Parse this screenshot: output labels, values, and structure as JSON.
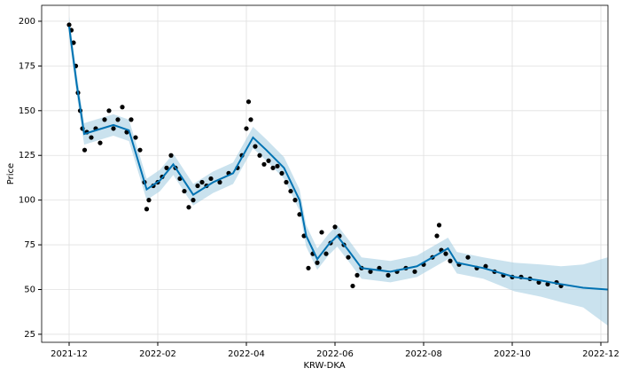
{
  "chart_data": {
    "type": "forecast",
    "xlabel": "KRW-DKA",
    "ylabel": "Price",
    "grid": true,
    "xlim": [
      -0.62,
      12.16
    ],
    "ylim": [
      20.5,
      208.9
    ],
    "xticks": [
      {
        "value": 0,
        "label": "2021-12"
      },
      {
        "value": 2,
        "label": "2022-02"
      },
      {
        "value": 4,
        "label": "2022-04"
      },
      {
        "value": 6,
        "label": "2022-06"
      },
      {
        "value": 8,
        "label": "2022-08"
      },
      {
        "value": 10,
        "label": "2022-10"
      },
      {
        "value": 12,
        "label": "2022-12"
      }
    ],
    "yticks": [
      25,
      50,
      75,
      100,
      125,
      150,
      175,
      200
    ],
    "observed": {
      "color": "#000000",
      "x": [
        0.0,
        0.05,
        0.1,
        0.15,
        0.2,
        0.25,
        0.3,
        0.35,
        0.4,
        0.5,
        0.6,
        0.7,
        0.8,
        0.9,
        1.0,
        1.1,
        1.2,
        1.3,
        1.4,
        1.5,
        1.6,
        1.7,
        1.75,
        1.8,
        1.9,
        2.0,
        2.1,
        2.2,
        2.3,
        2.4,
        2.5,
        2.6,
        2.7,
        2.8,
        2.9,
        3.0,
        3.1,
        3.2,
        3.4,
        3.6,
        3.8,
        3.9,
        4.0,
        4.05,
        4.1,
        4.2,
        4.3,
        4.4,
        4.5,
        4.6,
        4.7,
        4.8,
        4.9,
        5.0,
        5.1,
        5.2,
        5.3,
        5.4,
        5.5,
        5.6,
        5.7,
        5.8,
        5.9,
        6.0,
        6.1,
        6.2,
        6.3,
        6.4,
        6.5,
        6.6,
        6.8,
        7.0,
        7.2,
        7.4,
        7.6,
        7.8,
        8.0,
        8.2,
        8.3,
        8.35,
        8.4,
        8.5,
        8.6,
        8.8,
        9.0,
        9.2,
        9.4,
        9.6,
        9.8,
        10.0,
        10.2,
        10.4,
        10.6,
        10.8,
        11.0,
        11.1
      ],
      "values": [
        198,
        195,
        188,
        175,
        160,
        150,
        140,
        128,
        138,
        135,
        140,
        132,
        145,
        150,
        140,
        145,
        152,
        138,
        145,
        135,
        128,
        110,
        95,
        100,
        108,
        110,
        113,
        118,
        125,
        118,
        112,
        105,
        96,
        100,
        108,
        110,
        108,
        112,
        110,
        115,
        118,
        125,
        140,
        155,
        145,
        130,
        125,
        120,
        122,
        118,
        119,
        115,
        110,
        105,
        100,
        92,
        80,
        62,
        70,
        65,
        82,
        70,
        76,
        85,
        80,
        75,
        68,
        52,
        58,
        62,
        60,
        62,
        58,
        60,
        62,
        60,
        64,
        68,
        80,
        86,
        72,
        70,
        66,
        64,
        68,
        62,
        63,
        60,
        58,
        57,
        57,
        56,
        54,
        53,
        54,
        52
      ]
    },
    "forecast": {
      "color": "#0072b2",
      "band_color": "#a6cee3",
      "x": [
        0,
        0.17,
        0.34,
        0.6,
        1.0,
        1.35,
        1.75,
        2.05,
        2.35,
        2.8,
        3.25,
        3.7,
        4.15,
        4.45,
        4.85,
        5.2,
        5.35,
        5.6,
        5.85,
        6.05,
        6.3,
        6.6,
        7.25,
        7.85,
        8.55,
        8.75,
        9.35,
        10.05,
        10.65,
        11.1,
        11.6,
        12.15
      ],
      "values": [
        197,
        165,
        137,
        139,
        142,
        139,
        106,
        111,
        120,
        103,
        110,
        115,
        135,
        128,
        118,
        100,
        80,
        67,
        75,
        80,
        72,
        62,
        60,
        63,
        73,
        65,
        62,
        57,
        55,
        53,
        51,
        50
      ],
      "lower": [
        191,
        159,
        131,
        133,
        136,
        133,
        100,
        105,
        114,
        97,
        104,
        109,
        129,
        122,
        112,
        94,
        74,
        61,
        69,
        74,
        66,
        56,
        54,
        57,
        67,
        59,
        56,
        49,
        46,
        43,
        40,
        30
      ],
      "upper": [
        203,
        171,
        143,
        145,
        148,
        145,
        112,
        117,
        126,
        109,
        116,
        121,
        141,
        134,
        124,
        106,
        86,
        73,
        81,
        86,
        78,
        68,
        66,
        69,
        79,
        71,
        68,
        65,
        64,
        63,
        64,
        68
      ]
    }
  }
}
